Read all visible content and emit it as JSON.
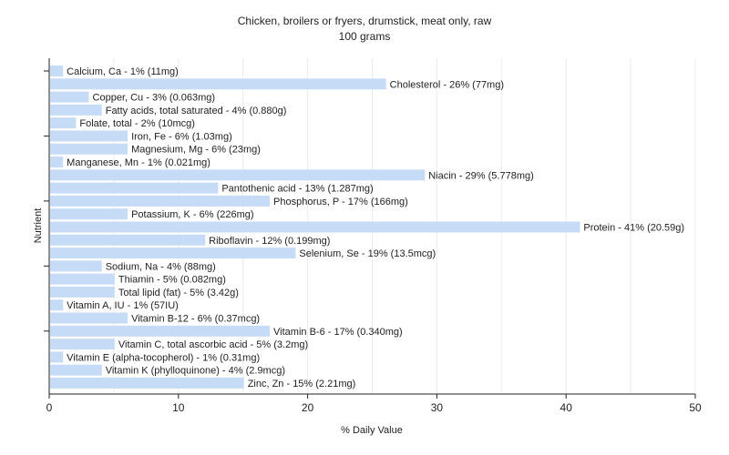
{
  "chart_data": {
    "type": "bar",
    "orientation": "horizontal",
    "title": "Chicken, broilers or fryers, drumstick, meat only, raw",
    "subtitle": "100 grams",
    "xlabel": "% Daily Value",
    "ylabel": "Nutrient",
    "xlim": [
      0,
      50
    ],
    "xticks": [
      0,
      10,
      20,
      30,
      40,
      50
    ],
    "grid": true,
    "bar_color": "#c6dcf6",
    "categories": [
      "Calcium, Ca",
      "Cholesterol",
      "Copper, Cu",
      "Fatty acids, total saturated",
      "Folate, total",
      "Iron, Fe",
      "Magnesium, Mg",
      "Manganese, Mn",
      "Niacin",
      "Pantothenic acid",
      "Phosphorus, P",
      "Potassium, K",
      "Protein",
      "Riboflavin",
      "Selenium, Se",
      "Sodium, Na",
      "Thiamin",
      "Total lipid (fat)",
      "Vitamin A, IU",
      "Vitamin B-12",
      "Vitamin B-6",
      "Vitamin C, total ascorbic acid",
      "Vitamin E (alpha-tocopherol)",
      "Vitamin K (phylloquinone)",
      "Zinc, Zn"
    ],
    "values": [
      1,
      26,
      3,
      4,
      2,
      6,
      6,
      1,
      29,
      13,
      17,
      6,
      41,
      12,
      19,
      4,
      5,
      5,
      1,
      6,
      17,
      5,
      1,
      4,
      15
    ],
    "labels": [
      "Calcium, Ca - 1% (11mg)",
      "Cholesterol - 26% (77mg)",
      "Copper, Cu - 3% (0.063mg)",
      "Fatty acids, total saturated - 4% (0.880g)",
      "Folate, total - 2% (10mcg)",
      "Iron, Fe - 6% (1.03mg)",
      "Magnesium, Mg - 6% (23mg)",
      "Manganese, Mn - 1% (0.021mg)",
      "Niacin - 29% (5.778mg)",
      "Pantothenic acid - 13% (1.287mg)",
      "Phosphorus, P - 17% (166mg)",
      "Potassium, K - 6% (226mg)",
      "Protein - 41% (20.59g)",
      "Riboflavin - 12% (0.199mg)",
      "Selenium, Se - 19% (13.5mcg)",
      "Sodium, Na - 4% (88mg)",
      "Thiamin - 5% (0.082mg)",
      "Total lipid (fat) - 5% (3.42g)",
      "Vitamin A, IU - 1% (57IU)",
      "Vitamin B-12 - 6% (0.37mcg)",
      "Vitamin B-6 - 17% (0.340mg)",
      "Vitamin C, total ascorbic acid - 5% (3.2mg)",
      "Vitamin E (alpha-tocopherol) - 1% (0.31mg)",
      "Vitamin K (phylloquinone) - 4% (2.9mcg)",
      "Zinc, Zn - 15% (2.21mg)"
    ]
  }
}
